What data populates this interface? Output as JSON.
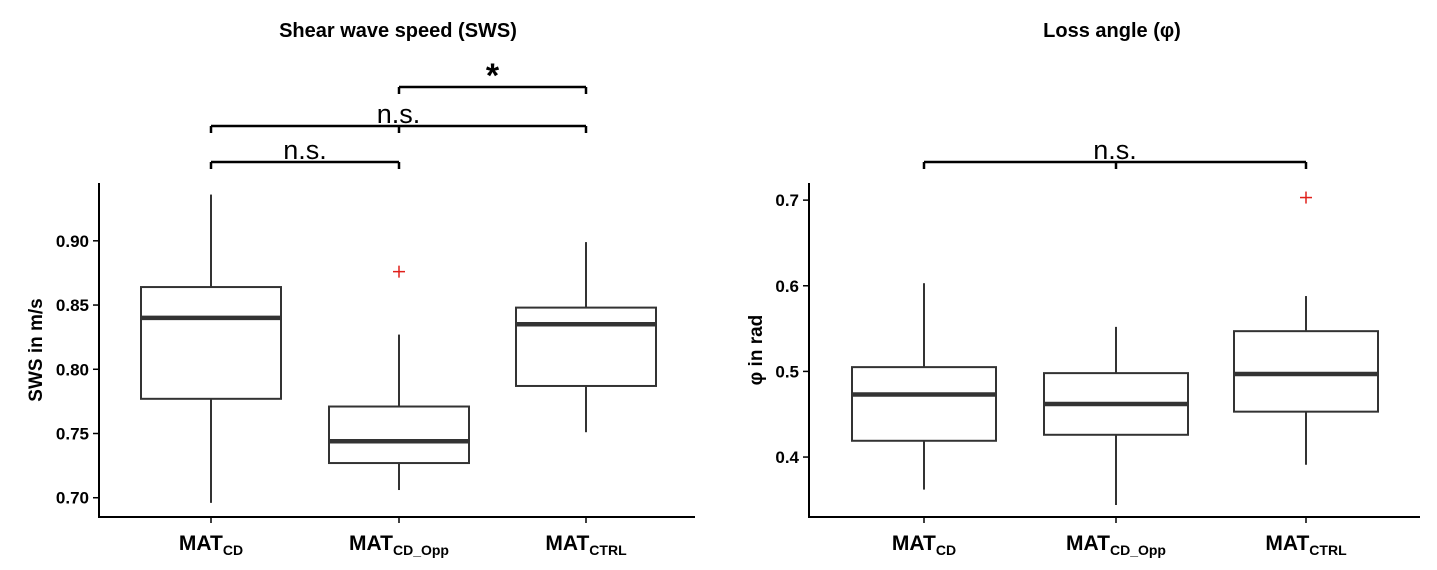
{
  "chart_data": [
    {
      "type": "box",
      "title": "Shear wave speed (SWS)",
      "ylabel": "SWS in m/s",
      "ylim": [
        0.685,
        0.945
      ],
      "yticks": [
        "0.70",
        "0.75",
        "0.80",
        "0.85",
        "0.90"
      ],
      "categories": [
        {
          "main": "MAT",
          "sub": "CD"
        },
        {
          "main": "MAT",
          "sub": "CD_Opp"
        },
        {
          "main": "MAT",
          "sub": "CTRL"
        }
      ],
      "boxes": [
        {
          "whisker_low": 0.696,
          "q1": 0.777,
          "median": 0.84,
          "q3": 0.864,
          "whisker_high": 0.936,
          "outliers": []
        },
        {
          "whisker_low": 0.706,
          "q1": 0.727,
          "median": 0.744,
          "q3": 0.771,
          "whisker_high": 0.827,
          "outliers": [
            0.876
          ]
        },
        {
          "whisker_low": 0.751,
          "q1": 0.787,
          "median": 0.835,
          "q3": 0.848,
          "whisker_high": 0.899,
          "outliers": []
        }
      ],
      "significance": [
        {
          "from": 0,
          "to": 1,
          "label": "n.s.",
          "level": 0
        },
        {
          "from": 0,
          "to": 2,
          "label": "n.s.",
          "level": 1
        },
        {
          "from": 1,
          "to": 2,
          "label": "*",
          "level": 2
        }
      ]
    },
    {
      "type": "box",
      "title": "Loss angle (φ)",
      "ylabel": "φ in rad",
      "ylim": [
        0.33,
        0.72
      ],
      "yticks": [
        "0.4",
        "0.5",
        "0.6",
        "0.7"
      ],
      "categories": [
        {
          "main": "MAT",
          "sub": "CD"
        },
        {
          "main": "MAT",
          "sub": "CD_Opp"
        },
        {
          "main": "MAT",
          "sub": "CTRL"
        }
      ],
      "boxes": [
        {
          "whisker_low": 0.362,
          "q1": 0.419,
          "median": 0.473,
          "q3": 0.505,
          "whisker_high": 0.603,
          "outliers": []
        },
        {
          "whisker_low": 0.344,
          "q1": 0.426,
          "median": 0.462,
          "q3": 0.498,
          "whisker_high": 0.552,
          "outliers": []
        },
        {
          "whisker_low": 0.391,
          "q1": 0.453,
          "median": 0.497,
          "q3": 0.547,
          "whisker_high": 0.588,
          "outliers": [
            0.703
          ]
        }
      ],
      "significance": [
        {
          "from": 0,
          "to": 2,
          "label": "n.s.",
          "level": 0
        }
      ]
    }
  ]
}
